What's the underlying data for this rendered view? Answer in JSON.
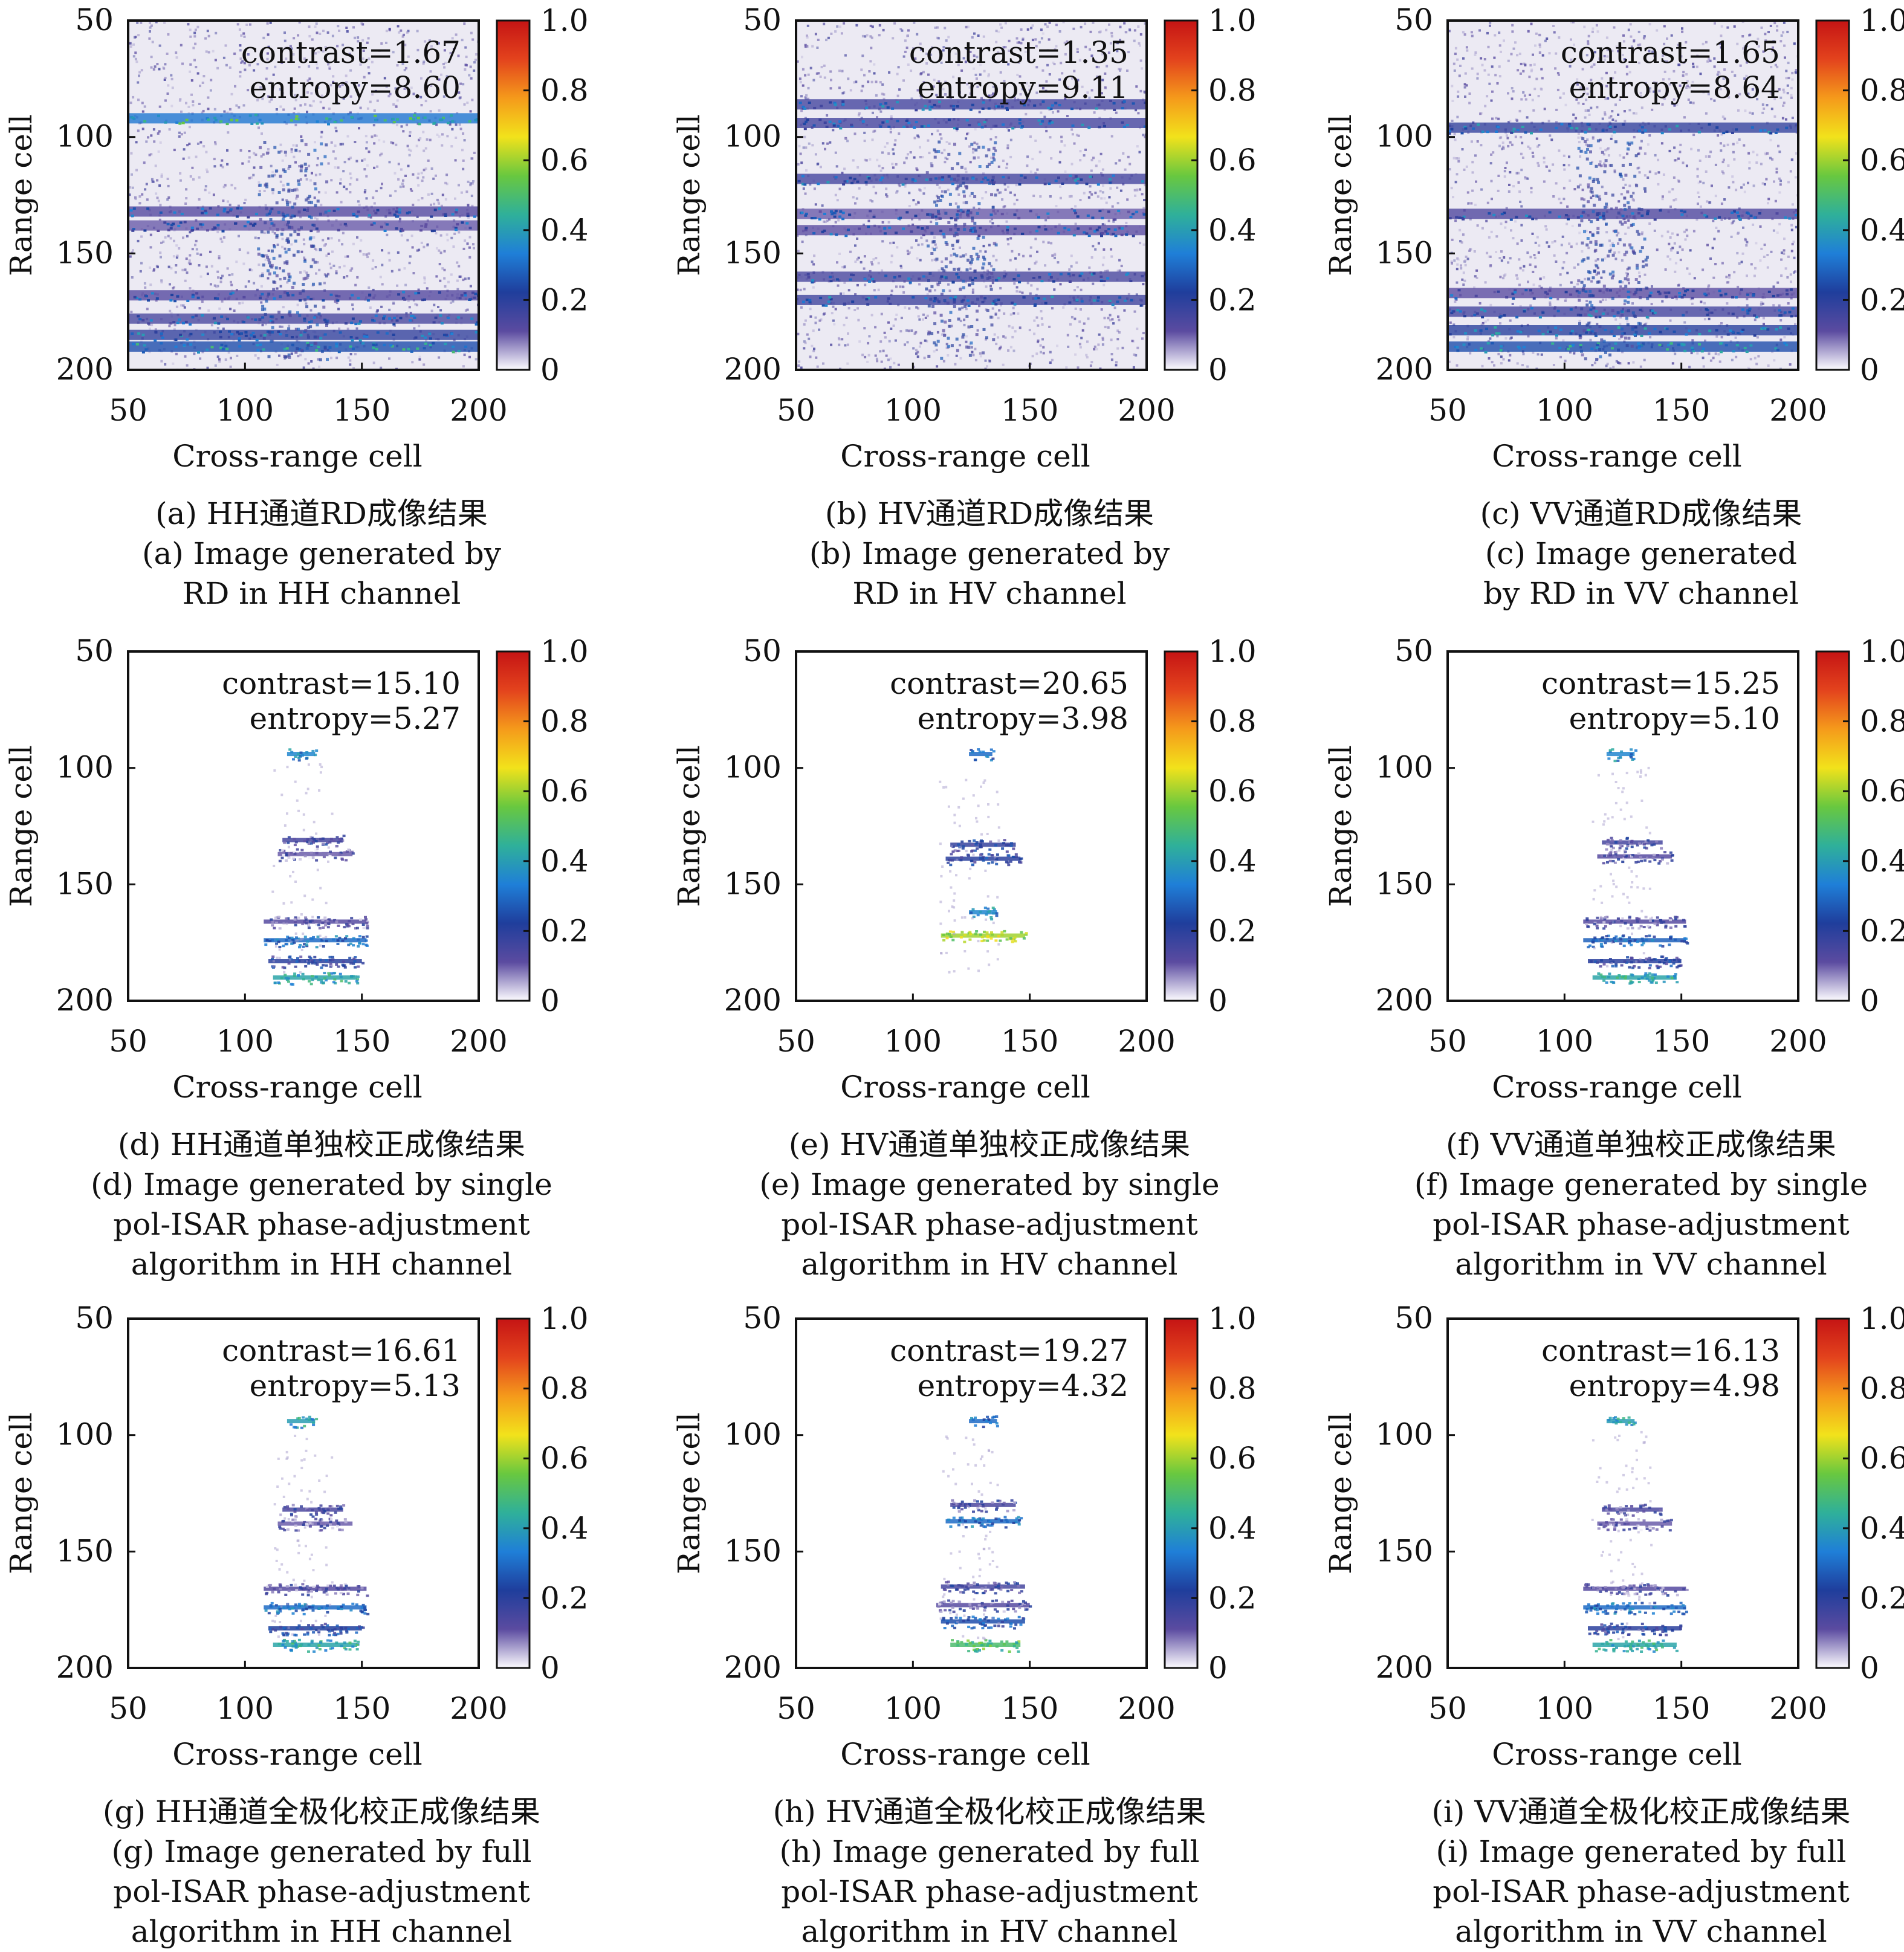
{
  "colorbar": {
    "ticks": [
      "1.0",
      "0.8",
      "0.6",
      "0.4",
      "0.2",
      "0"
    ],
    "colors": [
      "#fdfcff",
      "#5b4ba0",
      "#1f3e9c",
      "#1f7fd8",
      "#2fb09a",
      "#69c83f",
      "#f2e21b",
      "#f59a1b",
      "#e3431d",
      "#c51414"
    ]
  },
  "chart_data": [
    {
      "type": "heatmap",
      "id": "a",
      "xlabel": "Cross-range cell",
      "ylabel": "Range cell",
      "xlim": [
        50,
        200
      ],
      "ylim": [
        50,
        200
      ],
      "x_ticks": [
        "50",
        "100",
        "150",
        "200"
      ],
      "y_ticks": [
        "50",
        "100",
        "150",
        "200"
      ],
      "colorbar_range": [
        0,
        1
      ],
      "annotation": [
        "contrast=1.67",
        "entropy=8.60"
      ],
      "mode": "rd",
      "bands": [
        {
          "r": 92,
          "v": 0.32
        },
        {
          "r": 132,
          "v": 0.12
        },
        {
          "r": 138,
          "v": 0.1
        },
        {
          "r": 168,
          "v": 0.12
        },
        {
          "r": 178,
          "v": 0.14
        },
        {
          "r": 185,
          "v": 0.18
        },
        {
          "r": 190,
          "v": 0.25
        }
      ],
      "caption": [
        "(a) HH通道RD成像结果",
        "(a) Image generated by",
        "RD in HH channel"
      ]
    },
    {
      "type": "heatmap",
      "id": "b",
      "xlabel": "Cross-range cell",
      "ylabel": "Range cell",
      "xlim": [
        50,
        200
      ],
      "ylim": [
        50,
        200
      ],
      "x_ticks": [
        "50",
        "100",
        "150",
        "200"
      ],
      "y_ticks": [
        "50",
        "100",
        "150",
        "200"
      ],
      "colorbar_range": [
        0,
        1
      ],
      "annotation": [
        "contrast=1.35",
        "entropy=9.11"
      ],
      "mode": "rd",
      "bands": [
        {
          "r": 86,
          "v": 0.15
        },
        {
          "r": 94,
          "v": 0.15
        },
        {
          "r": 118,
          "v": 0.15
        },
        {
          "r": 133,
          "v": 0.1
        },
        {
          "r": 140,
          "v": 0.11
        },
        {
          "r": 160,
          "v": 0.14
        },
        {
          "r": 170,
          "v": 0.16
        }
      ],
      "caption": [
        "(b) HV通道RD成像结果",
        "(b) Image generated by",
        "RD in HV channel"
      ]
    },
    {
      "type": "heatmap",
      "id": "c",
      "xlabel": "Cross-range cell",
      "ylabel": "Range cell",
      "xlim": [
        50,
        200
      ],
      "ylim": [
        50,
        200
      ],
      "x_ticks": [
        "50",
        "100",
        "150",
        "200"
      ],
      "y_ticks": [
        "50",
        "100",
        "150",
        "200"
      ],
      "colorbar_range": [
        0,
        1
      ],
      "annotation": [
        "contrast=1.65",
        "entropy=8.64"
      ],
      "mode": "rd",
      "bands": [
        {
          "r": 96,
          "v": 0.18
        },
        {
          "r": 133,
          "v": 0.13
        },
        {
          "r": 167,
          "v": 0.11
        },
        {
          "r": 175,
          "v": 0.15
        },
        {
          "r": 183,
          "v": 0.2
        },
        {
          "r": 190,
          "v": 0.25
        }
      ],
      "caption": [
        "(c) VV通道RD成像结果",
        "(c) Image generated",
        "by RD in VV channel"
      ]
    },
    {
      "type": "heatmap",
      "id": "d",
      "xlabel": "Cross-range cell",
      "ylabel": "Range cell",
      "xlim": [
        50,
        200
      ],
      "ylim": [
        50,
        200
      ],
      "x_ticks": [
        "50",
        "100",
        "150",
        "200"
      ],
      "y_ticks": [
        "50",
        "100",
        "150",
        "200"
      ],
      "colorbar_range": [
        0,
        1
      ],
      "annotation": [
        "contrast=15.10",
        "entropy=5.27"
      ],
      "mode": "focused",
      "bands": [
        {
          "r": 94,
          "x0": 118,
          "x1": 130,
          "v": 0.35
        },
        {
          "r": 131,
          "x0": 116,
          "x1": 142,
          "v": 0.15
        },
        {
          "r": 137,
          "x0": 114,
          "x1": 146,
          "v": 0.1
        },
        {
          "r": 166,
          "x0": 108,
          "x1": 152,
          "v": 0.12
        },
        {
          "r": 174,
          "x0": 108,
          "x1": 152,
          "v": 0.3
        },
        {
          "r": 183,
          "x0": 110,
          "x1": 150,
          "v": 0.2
        },
        {
          "r": 190,
          "x0": 112,
          "x1": 148,
          "v": 0.42
        }
      ],
      "caption": [
        "(d) HH通道单独校正成像结果",
        "(d) Image generated by single",
        "pol-ISAR phase-adjustment",
        "algorithm in HH channel"
      ]
    },
    {
      "type": "heatmap",
      "id": "e",
      "xlabel": "Cross-range cell",
      "ylabel": "Range cell",
      "xlim": [
        50,
        200
      ],
      "ylim": [
        50,
        200
      ],
      "x_ticks": [
        "50",
        "100",
        "150",
        "200"
      ],
      "y_ticks": [
        "50",
        "100",
        "150",
        "200"
      ],
      "colorbar_range": [
        0,
        1
      ],
      "annotation": [
        "contrast=20.65",
        "entropy=3.98"
      ],
      "mode": "focused",
      "bands": [
        {
          "r": 94,
          "x0": 124,
          "x1": 134,
          "v": 0.3
        },
        {
          "r": 133,
          "x0": 116,
          "x1": 144,
          "v": 0.18
        },
        {
          "r": 139,
          "x0": 114,
          "x1": 146,
          "v": 0.2
        },
        {
          "r": 162,
          "x0": 124,
          "x1": 136,
          "v": 0.35
        },
        {
          "r": 172,
          "x0": 112,
          "x1": 148,
          "v": 0.6
        }
      ],
      "caption": [
        "(e) HV通道单独校正成像结果",
        "(e) Image generated by single",
        "pol-ISAR phase-adjustment",
        "algorithm in HV channel"
      ]
    },
    {
      "type": "heatmap",
      "id": "f",
      "xlabel": "Cross-range cell",
      "ylabel": "Range cell",
      "xlim": [
        50,
        200
      ],
      "ylim": [
        50,
        200
      ],
      "x_ticks": [
        "50",
        "100",
        "150",
        "200"
      ],
      "y_ticks": [
        "50",
        "100",
        "150",
        "200"
      ],
      "colorbar_range": [
        0,
        1
      ],
      "annotation": [
        "contrast=15.25",
        "entropy=5.10"
      ],
      "mode": "focused",
      "bands": [
        {
          "r": 94,
          "x0": 118,
          "x1": 130,
          "v": 0.35
        },
        {
          "r": 132,
          "x0": 116,
          "x1": 142,
          "v": 0.15
        },
        {
          "r": 138,
          "x0": 114,
          "x1": 146,
          "v": 0.12
        },
        {
          "r": 166,
          "x0": 108,
          "x1": 152,
          "v": 0.12
        },
        {
          "r": 174,
          "x0": 108,
          "x1": 152,
          "v": 0.28
        },
        {
          "r": 183,
          "x0": 110,
          "x1": 150,
          "v": 0.2
        },
        {
          "r": 190,
          "x0": 112,
          "x1": 148,
          "v": 0.42
        }
      ],
      "caption": [
        "(f) VV通道单独校正成像结果",
        "(f) Image generated by single",
        "pol-ISAR phase-adjustment",
        "algorithm in VV channel"
      ]
    },
    {
      "type": "heatmap",
      "id": "g",
      "xlabel": "Cross-range cell",
      "ylabel": "Range cell",
      "xlim": [
        50,
        200
      ],
      "ylim": [
        50,
        200
      ],
      "x_ticks": [
        "50",
        "100",
        "150",
        "200"
      ],
      "y_ticks": [
        "50",
        "100",
        "150",
        "200"
      ],
      "colorbar_range": [
        0,
        1
      ],
      "annotation": [
        "contrast=16.61",
        "entropy=5.13"
      ],
      "mode": "focused",
      "bands": [
        {
          "r": 94,
          "x0": 118,
          "x1": 130,
          "v": 0.4
        },
        {
          "r": 132,
          "x0": 116,
          "x1": 142,
          "v": 0.14
        },
        {
          "r": 138,
          "x0": 114,
          "x1": 146,
          "v": 0.1
        },
        {
          "r": 166,
          "x0": 108,
          "x1": 152,
          "v": 0.12
        },
        {
          "r": 174,
          "x0": 108,
          "x1": 152,
          "v": 0.3
        },
        {
          "r": 183,
          "x0": 110,
          "x1": 150,
          "v": 0.22
        },
        {
          "r": 190,
          "x0": 112,
          "x1": 148,
          "v": 0.42
        }
      ],
      "caption": [
        "(g) HH通道全极化校正成像结果",
        "(g) Image generated by full",
        "pol-ISAR phase-adjustment",
        "algorithm in HH channel"
      ]
    },
    {
      "type": "heatmap",
      "id": "h",
      "xlabel": "Cross-range cell",
      "ylabel": "Range cell",
      "xlim": [
        50,
        200
      ],
      "ylim": [
        50,
        200
      ],
      "x_ticks": [
        "50",
        "100",
        "150",
        "200"
      ],
      "y_ticks": [
        "50",
        "100",
        "150",
        "200"
      ],
      "colorbar_range": [
        0,
        1
      ],
      "annotation": [
        "contrast=19.27",
        "entropy=4.32"
      ],
      "mode": "focused",
      "bands": [
        {
          "r": 94,
          "x0": 124,
          "x1": 136,
          "v": 0.3
        },
        {
          "r": 130,
          "x0": 116,
          "x1": 144,
          "v": 0.14
        },
        {
          "r": 137,
          "x0": 114,
          "x1": 146,
          "v": 0.3
        },
        {
          "r": 165,
          "x0": 112,
          "x1": 148,
          "v": 0.15
        },
        {
          "r": 173,
          "x0": 110,
          "x1": 150,
          "v": 0.12
        },
        {
          "r": 180,
          "x0": 112,
          "x1": 148,
          "v": 0.25
        },
        {
          "r": 190,
          "x0": 116,
          "x1": 146,
          "v": 0.5
        }
      ],
      "caption": [
        "(h) HV通道全极化校正成像结果",
        "(h) Image generated by full",
        "pol-ISAR phase-adjustment",
        "algorithm in HV channel"
      ]
    },
    {
      "type": "heatmap",
      "id": "i",
      "xlabel": "Cross-range cell",
      "ylabel": "Range cell",
      "xlim": [
        50,
        200
      ],
      "ylim": [
        50,
        200
      ],
      "x_ticks": [
        "50",
        "100",
        "150",
        "200"
      ],
      "y_ticks": [
        "50",
        "100",
        "150",
        "200"
      ],
      "colorbar_range": [
        0,
        1
      ],
      "annotation": [
        "contrast=16.13",
        "entropy=4.98"
      ],
      "mode": "focused",
      "bands": [
        {
          "r": 94,
          "x0": 118,
          "x1": 130,
          "v": 0.4
        },
        {
          "r": 132,
          "x0": 116,
          "x1": 142,
          "v": 0.14
        },
        {
          "r": 138,
          "x0": 114,
          "x1": 146,
          "v": 0.1
        },
        {
          "r": 166,
          "x0": 108,
          "x1": 152,
          "v": 0.12
        },
        {
          "r": 174,
          "x0": 108,
          "x1": 152,
          "v": 0.3
        },
        {
          "r": 183,
          "x0": 110,
          "x1": 150,
          "v": 0.2
        },
        {
          "r": 190,
          "x0": 112,
          "x1": 148,
          "v": 0.42
        }
      ],
      "caption": [
        "(i) VV通道全极化校正成像结果",
        "(i) Image generated by full",
        "pol-ISAR phase-adjustment",
        "algorithm in VV channel"
      ]
    }
  ]
}
